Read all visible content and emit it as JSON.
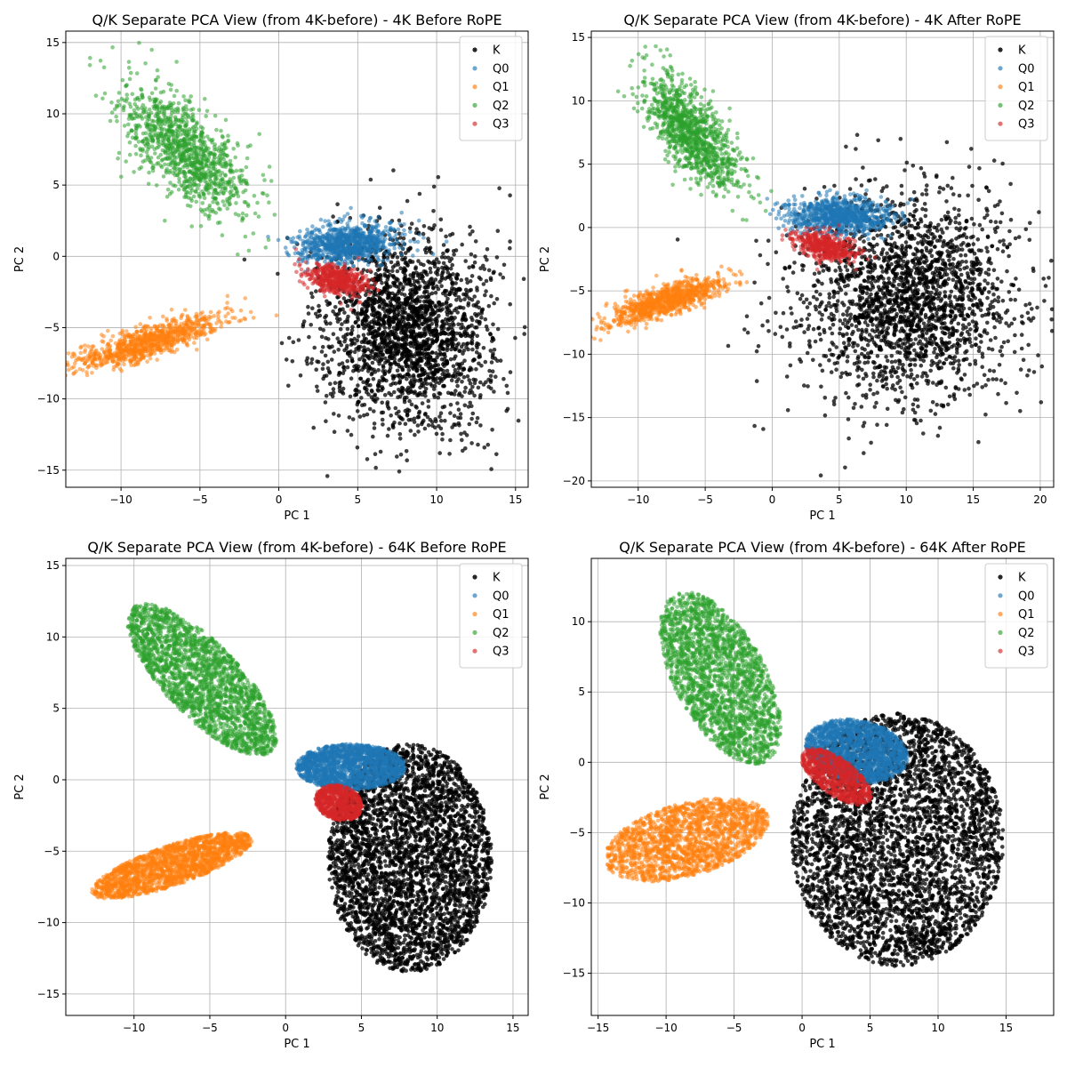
{
  "series_styles": [
    {
      "name": "K",
      "color": "#000000",
      "opacity": 0.75
    },
    {
      "name": "Q0",
      "color": "#1f77b4",
      "opacity": 0.55
    },
    {
      "name": "Q1",
      "color": "#ff7f0e",
      "opacity": 0.55
    },
    {
      "name": "Q2",
      "color": "#2ca02c",
      "opacity": 0.55
    },
    {
      "name": "Q3",
      "color": "#d62728",
      "opacity": 0.55
    }
  ],
  "chart_data": [
    {
      "type": "scatter",
      "title": "Q/K Separate PCA View (from 4K-before) - 4K Before RoPE",
      "xlabel": "PC 1",
      "ylabel": "PC 2",
      "xlim": [
        -13.5,
        15.8
      ],
      "ylim": [
        -16.2,
        15.8
      ],
      "xticks": [
        -10,
        -5,
        0,
        5,
        10,
        15
      ],
      "yticks": [
        -15,
        -10,
        -5,
        0,
        5,
        10,
        15
      ],
      "grid": true,
      "legend": "top-right",
      "series": [
        {
          "name": "K",
          "cluster": {
            "type": "gauss",
            "center": [
              8.2,
              -5.2
            ],
            "spread": [
              2.6,
              3.4
            ],
            "angle": 0,
            "count": 2200
          }
        },
        {
          "name": "Q0",
          "cluster": {
            "type": "gauss",
            "center": [
              4.3,
              0.9
            ],
            "spread": [
              1.6,
              0.65
            ],
            "angle": 5,
            "count": 900
          }
        },
        {
          "name": "Q1",
          "cluster": {
            "type": "gauss",
            "center": [
              -8.2,
              -6.0
            ],
            "spread": [
              2.4,
              0.55
            ],
            "angle": 20,
            "count": 900
          }
        },
        {
          "name": "Q2",
          "cluster": {
            "type": "gauss",
            "center": [
              -6.0,
              7.5
            ],
            "spread": [
              2.8,
              1.2
            ],
            "angle": -50,
            "count": 1100
          }
        },
        {
          "name": "Q3",
          "cluster": {
            "type": "gauss",
            "center": [
              3.7,
              -1.6
            ],
            "spread": [
              1.0,
              0.5
            ],
            "angle": -15,
            "count": 500
          }
        }
      ]
    },
    {
      "type": "scatter",
      "title": "Q/K Separate PCA View (from 4K-before) - 4K After RoPE",
      "xlabel": "PC 1",
      "ylabel": "PC 2",
      "xlim": [
        -13.5,
        21
      ],
      "ylim": [
        -20.5,
        15.5
      ],
      "xticks": [
        -10,
        -5,
        0,
        5,
        10,
        15,
        20
      ],
      "yticks": [
        -20,
        -15,
        -10,
        -5,
        0,
        5,
        10,
        15
      ],
      "grid": true,
      "legend": "top-right",
      "series": [
        {
          "name": "K",
          "cluster": {
            "type": "gauss",
            "center": [
              10.0,
              -5.5
            ],
            "spread": [
              4.0,
              4.0
            ],
            "angle": 0,
            "count": 2200
          }
        },
        {
          "name": "Q0",
          "cluster": {
            "type": "gauss",
            "center": [
              5.0,
              0.9
            ],
            "spread": [
              1.9,
              0.7
            ],
            "angle": 0,
            "count": 900
          }
        },
        {
          "name": "Q1",
          "cluster": {
            "type": "gauss",
            "center": [
              -8.0,
              -5.8
            ],
            "spread": [
              2.3,
              0.55
            ],
            "angle": 20,
            "count": 900
          }
        },
        {
          "name": "Q2",
          "cluster": {
            "type": "gauss",
            "center": [
              -6.0,
              7.5
            ],
            "spread": [
              2.6,
              1.1
            ],
            "angle": -55,
            "count": 1100
          }
        },
        {
          "name": "Q3",
          "cluster": {
            "type": "gauss",
            "center": [
              4.0,
              -1.5
            ],
            "spread": [
              1.2,
              0.5
            ],
            "angle": -15,
            "count": 500
          }
        }
      ]
    },
    {
      "type": "scatter",
      "title": "Q/K Separate PCA View (from 4K-before) - 64K Before RoPE",
      "xlabel": "PC 1",
      "ylabel": "PC 2",
      "xlim": [
        -14.5,
        16
      ],
      "ylim": [
        -16.5,
        15.5
      ],
      "xticks": [
        -10,
        -5,
        0,
        5,
        10,
        15
      ],
      "yticks": [
        -15,
        -10,
        -5,
        0,
        5,
        10,
        15
      ],
      "grid": true,
      "legend": "top-right",
      "series": [
        {
          "name": "K",
          "cluster": {
            "type": "ellipse",
            "center": [
              8.2,
              -5.5
            ],
            "radii": [
              5.4,
              8.0
            ],
            "angle": 0,
            "count": 3500
          }
        },
        {
          "name": "Q0",
          "cluster": {
            "type": "ellipse",
            "center": [
              4.3,
              0.9
            ],
            "radii": [
              3.6,
              1.6
            ],
            "angle": 0,
            "count": 1800
          }
        },
        {
          "name": "Q1",
          "cluster": {
            "type": "ellipse",
            "center": [
              -7.5,
              -6.0
            ],
            "radii": [
              5.6,
              1.4
            ],
            "angle": 20,
            "count": 1800
          }
        },
        {
          "name": "Q2",
          "cluster": {
            "type": "ellipse",
            "center": [
              -5.5,
              7.0
            ],
            "radii": [
              6.8,
              2.5
            ],
            "angle": -48,
            "count": 2200
          }
        },
        {
          "name": "Q3",
          "cluster": {
            "type": "ellipse",
            "center": [
              3.5,
              -1.6
            ],
            "radii": [
              1.6,
              1.2
            ],
            "angle": -20,
            "count": 700
          }
        }
      ]
    },
    {
      "type": "scatter",
      "title": "Q/K Separate PCA View (from 4K-before) - 64K After RoPE",
      "xlabel": "PC 1",
      "ylabel": "PC 2",
      "xlim": [
        -15.5,
        18.5
      ],
      "ylim": [
        -18,
        14.5
      ],
      "xticks": [
        -15,
        -10,
        -5,
        0,
        5,
        10,
        15
      ],
      "yticks": [
        -15,
        -10,
        -5,
        0,
        5,
        10
      ],
      "grid": true,
      "legend": "top-right",
      "series": [
        {
          "name": "K",
          "cluster": {
            "type": "ellipse",
            "center": [
              7.0,
              -5.5
            ],
            "radii": [
              7.8,
              9.0
            ],
            "angle": 0,
            "count": 3800
          }
        },
        {
          "name": "Q0",
          "cluster": {
            "type": "ellipse",
            "center": [
              4.0,
              0.8
            ],
            "radii": [
              3.8,
              2.2
            ],
            "angle": -10,
            "count": 1800
          }
        },
        {
          "name": "Q1",
          "cluster": {
            "type": "ellipse",
            "center": [
              -8.5,
              -5.5
            ],
            "radii": [
              6.2,
              2.6
            ],
            "angle": 15,
            "count": 1800
          }
        },
        {
          "name": "Q2",
          "cluster": {
            "type": "ellipse",
            "center": [
              -6.0,
              6.0
            ],
            "radii": [
              6.8,
              3.3
            ],
            "angle": -60,
            "count": 2200
          }
        },
        {
          "name": "Q3",
          "cluster": {
            "type": "ellipse",
            "center": [
              2.5,
              -1.0
            ],
            "radii": [
              3.0,
              1.3
            ],
            "angle": -35,
            "count": 800
          }
        }
      ]
    }
  ]
}
